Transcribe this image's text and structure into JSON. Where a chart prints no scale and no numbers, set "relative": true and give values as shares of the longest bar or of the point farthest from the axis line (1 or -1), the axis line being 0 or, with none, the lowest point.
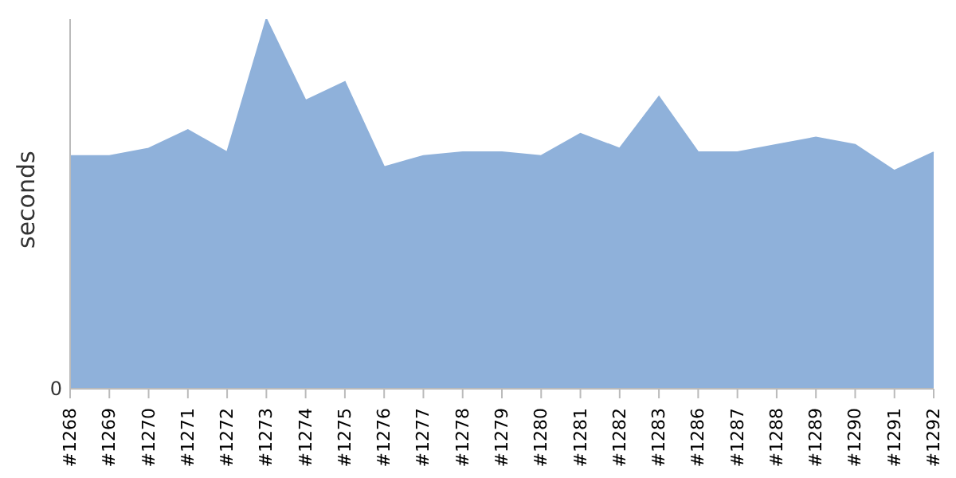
{
  "chart_data": {
    "type": "area",
    "ylabel": "seconds",
    "relative": true,
    "annotations": [
      "0"
    ],
    "color": "#8fb1da",
    "grid": false,
    "legend": false,
    "categories": [
      "#1268",
      "#1269",
      "#1270",
      "#1271",
      "#1272",
      "#1273",
      "#1274",
      "#1275",
      "#1276",
      "#1277",
      "#1278",
      "#1279",
      "#1280",
      "#1281",
      "#1282",
      "#1283",
      "#1286",
      "#1287",
      "#1288",
      "#1289",
      "#1290",
      "#1291",
      "#1292"
    ],
    "values": [
      0.63,
      0.63,
      0.65,
      0.7,
      0.64,
      1,
      0.78,
      0.83,
      0.6,
      0.63,
      0.64,
      0.64,
      0.63,
      0.69,
      0.65,
      0.79,
      0.64,
      0.64,
      0.66,
      0.68,
      0.66,
      0.59,
      0.64
    ]
  }
}
